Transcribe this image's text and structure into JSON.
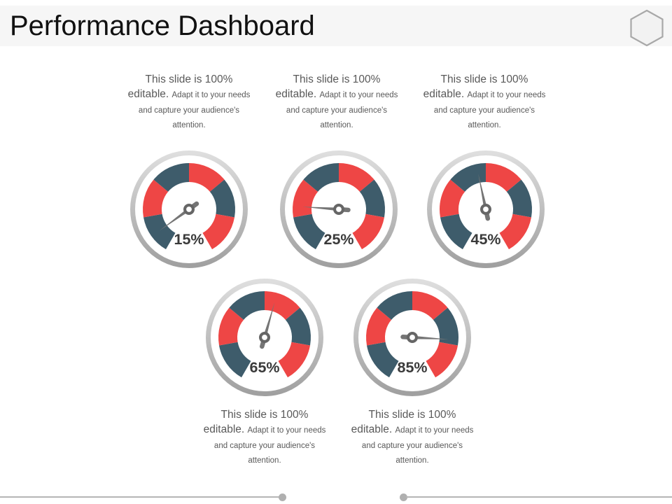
{
  "slide": {
    "title": "Performance Dashboard"
  },
  "caption": {
    "big": "This slide is 100% editable.",
    "small": "Adapt it to your needs and capture your audience's attention."
  },
  "chart_data": {
    "type": "gauge",
    "title": "Performance Dashboard",
    "unit": "%",
    "gauges": [
      {
        "label": "15%",
        "value": 15,
        "needle_angle_deg": 234
      },
      {
        "label": "25%",
        "value": 25,
        "needle_angle_deg": 274
      },
      {
        "label": "45%",
        "value": 45,
        "needle_angle_deg": 348
      },
      {
        "label": "65%",
        "value": 65,
        "needle_angle_deg": 16
      },
      {
        "label": "85%",
        "value": 85,
        "needle_angle_deg": 93
      }
    ],
    "band": {
      "start_angle_deg": 210,
      "total_sweep_deg": 300,
      "segments": 6,
      "segment_sweep_deg": 50,
      "alternating_colors": [
        "#3e5c6b",
        "#ee4645"
      ]
    },
    "colors": {
      "segment_slate": "#3e5c6b",
      "segment_red": "#ee4645",
      "ring_light": "#dedede",
      "ring_dark": "#a0a0a0",
      "needle": "#757575",
      "hub": "#666666",
      "hub_center": "#ffffff",
      "value_text": "#3a3a3a",
      "caption_text": "#595959",
      "header_band": "#f6f6f6",
      "decor_line": "#b5b5b5",
      "hexagon_stroke": "#a8a8a8",
      "hexagon_fill": "#f2f2f2"
    }
  }
}
